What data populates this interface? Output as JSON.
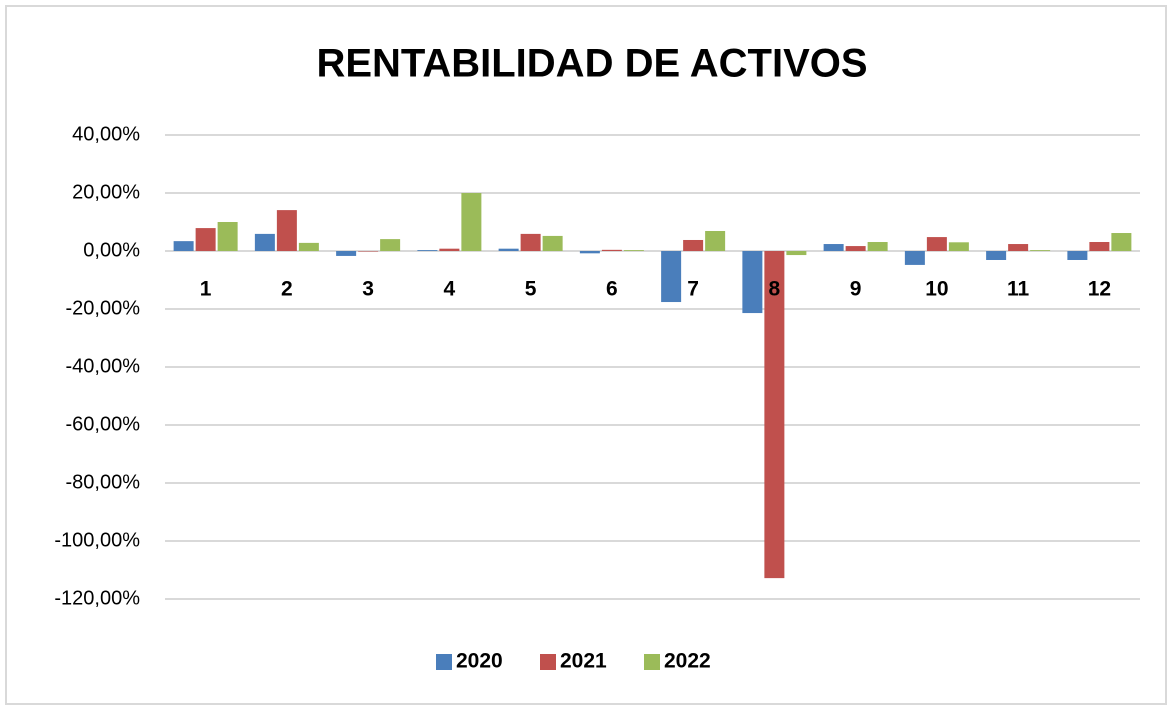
{
  "chart_data": {
    "type": "bar",
    "title": "RENTABILIDAD DE ACTIVOS",
    "categories": [
      "1",
      "2",
      "3",
      "4",
      "5",
      "6",
      "7",
      "8",
      "9",
      "10",
      "11",
      "12"
    ],
    "series": [
      {
        "name": "2020",
        "color": "#4a7ebb",
        "values": [
          3.4,
          5.9,
          -1.7,
          0.3,
          0.8,
          -0.8,
          -17.6,
          -21.4,
          2.4,
          -4.8,
          -3.1,
          -3.1
        ]
      },
      {
        "name": "2021",
        "color": "#c0504d",
        "values": [
          7.9,
          14.1,
          0,
          0.8,
          5.9,
          0.4,
          3.8,
          -112.8,
          1.7,
          4.8,
          2.4,
          3.1
        ]
      },
      {
        "name": "2022",
        "color": "#9bbb59",
        "values": [
          10,
          2.8,
          4.1,
          20,
          5.2,
          0.3,
          6.9,
          -1.4,
          3.1,
          3,
          0.3,
          6.2
        ]
      }
    ],
    "ylim": [
      -120,
      40
    ],
    "yticks": [
      {
        "value": 40,
        "label": "40,00%"
      },
      {
        "value": 20,
        "label": "20,00%"
      },
      {
        "value": 0,
        "label": "0,00%"
      },
      {
        "value": -20,
        "label": "-20,00%"
      },
      {
        "value": -40,
        "label": "-40,00%"
      },
      {
        "value": -60,
        "label": "-60,00%"
      },
      {
        "value": -80,
        "label": "-80,00%"
      },
      {
        "value": -100,
        "label": "-100,00%"
      },
      {
        "value": -120,
        "label": "-120,00%"
      }
    ],
    "grid": true,
    "legend": "bottom"
  }
}
